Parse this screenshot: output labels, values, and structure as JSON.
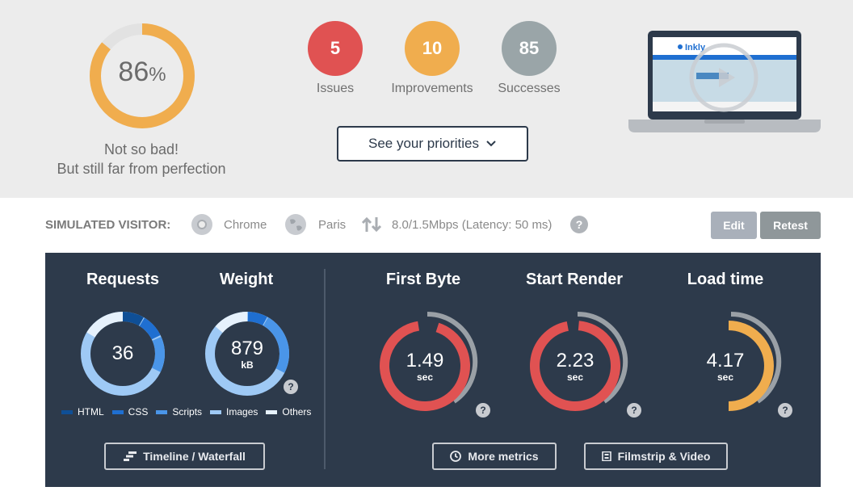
{
  "summary": {
    "score_value": "86",
    "score_unit": "%",
    "score_fraction": 0.86,
    "verdict_line1": "Not so bad!",
    "verdict_line2": "But still far from perfection",
    "badges": [
      {
        "count": "5",
        "label": "Issues",
        "color": "#e05252"
      },
      {
        "count": "10",
        "label": "Improvements",
        "color": "#f0ad4e"
      },
      {
        "count": "85",
        "label": "Successes",
        "color": "#9aa5a8"
      }
    ],
    "priorities_label": "See your priorities",
    "accent_color": "#f0ad4e"
  },
  "visitor": {
    "label": "SIMULATED VISITOR:",
    "browser": "Chrome",
    "location": "Paris",
    "connection": "8.0/1.5Mbps (Latency: 50 ms)",
    "help": "?",
    "edit_label": "Edit",
    "retest_label": "Retest"
  },
  "metrics": {
    "requests": {
      "title": "Requests",
      "value": "36"
    },
    "weight": {
      "title": "Weight",
      "value": "879",
      "unit": "kB"
    },
    "legend": [
      {
        "label": "HTML",
        "color": "#0f4f96"
      },
      {
        "label": "CSS",
        "color": "#1f6fd1"
      },
      {
        "label": "Scripts",
        "color": "#4a95e8"
      },
      {
        "label": "Images",
        "color": "#9ec9f5"
      },
      {
        "label": "Others",
        "color": "#e6f1fc"
      }
    ],
    "first_byte": {
      "title": "First Byte",
      "value": "1.49",
      "unit": "sec"
    },
    "start_render": {
      "title": "Start Render",
      "value": "2.23",
      "unit": "sec"
    },
    "load_time": {
      "title": "Load time",
      "value": "4.17",
      "unit": "sec"
    },
    "timeline_label": "Timeline / Waterfall",
    "more_metrics_label": "More metrics",
    "filmstrip_label": "Filmstrip & Video"
  },
  "screenshot": {
    "logo_text": "Inkly"
  }
}
